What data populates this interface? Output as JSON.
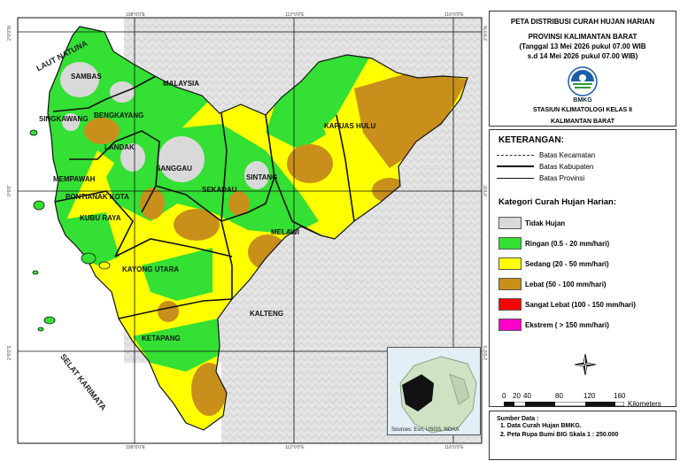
{
  "map": {
    "grid_labels": {
      "top": [
        "108°0'0\"E",
        "112°0'0\"E",
        "116°0'0\"E"
      ],
      "left": [
        "2°0'0\"N",
        "0°0'0\"",
        "2°0'0\"S"
      ],
      "right": [
        "2°0'0\"N",
        "0°0'0\"",
        "2°0'0\"S"
      ],
      "bottom": [
        "108°0'0\"E",
        "112°0'0\"E",
        "116°0'0\"E"
      ]
    },
    "region_labels": {
      "sambas": "SAMBAS",
      "bengkayang": "BENGKAYANG",
      "singkawang": "SINGKAWANG",
      "landak": "LANDAK",
      "mempawah": "MEMPAWAH",
      "pontianak": "PONTIANAK KOTA",
      "kubu_raya": "KUBU RAYA",
      "sanggau": "SANGGAU",
      "sekadau": "SEKADAU",
      "sintang": "SINTANG",
      "kapuas_hulu": "KAPUAS HULU",
      "melawi": "MELAWI",
      "kayong_utara": "KAYONG UTARA",
      "ketapang": "KETAPANG"
    },
    "neighbor_labels": {
      "malaysia": "MALAYSIA",
      "kalteng": "KALTENG"
    },
    "sea_labels": {
      "laut_natuna": "LAUT NATUNA",
      "selat_karimata": "SELAT KARIMATA"
    },
    "inset_credit": "Sources: Esri, USGS, NOAA"
  },
  "title": {
    "line1": "PETA DISTRIBUSI CURAH HUJAN HARIAN",
    "line2": "PROVINSI KALIMANTAN BARAT",
    "line3": "(Tanggal 13 Mei 2026 pukul 07.00 WIB",
    "line4": "s.d 14 Mei 2026 pukul 07.00 WIB)",
    "logo_text": "BMKG",
    "station1": "STASIUN KLIMATOLOGI KELAS II",
    "station2": "KALIMANTAN BARAT"
  },
  "legend": {
    "heading": "KETERANGAN:",
    "lines": [
      {
        "label": "Batas Kecamatan",
        "style": "dashed"
      },
      {
        "label": "Batas Kabupaten",
        "style": "thick"
      },
      {
        "label": "Batas Provinsi",
        "style": "thin"
      }
    ],
    "category_heading": "Kategori Curah Hujan Harian:",
    "categories": [
      {
        "label": "Tidak Hujan",
        "color": "#d9d9d9"
      },
      {
        "label": "Ringan (0.5 - 20 mm/hari)",
        "color": "#33e033"
      },
      {
        "label": "Sedang (20 - 50 mm/hari)",
        "color": "#ffff00"
      },
      {
        "label": "Lebat (50 - 100 mm/hari)",
        "color": "#c8901a"
      },
      {
        "label": "Sangat Lebat (100 - 150 mm/hari)",
        "color": "#ff0000"
      },
      {
        "label": "Ekstrem ( > 150 mm/hari)",
        "color": "#ff00cc"
      }
    ]
  },
  "scale": {
    "ticks": [
      "0",
      "20",
      "40",
      "80",
      "120",
      "160"
    ],
    "unit": "Kilometers"
  },
  "source": {
    "heading": "Sumber Data :",
    "item1": "1. Data Curah Hujan BMKG.",
    "item2": "2. Peta Rupa Bumi BIG Skala 1 : 250.000"
  }
}
